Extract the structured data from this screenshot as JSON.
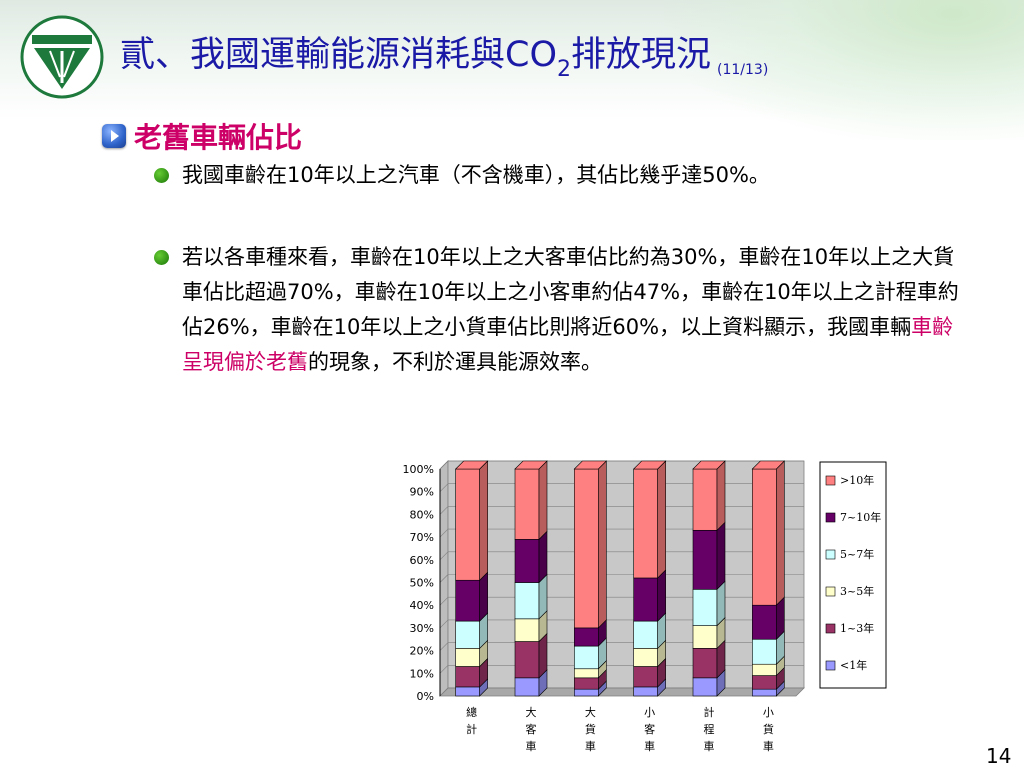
{
  "title": {
    "main": "貳、我國運輸能源消耗與CO",
    "sub": "2",
    "main_end": "排放現況",
    "page_tag": "(11/13)"
  },
  "section": {
    "heading": "老舊車輛佔比"
  },
  "bullets": [
    {
      "text": "我國車齡在10年以上之汽車（不含機車），其佔比幾乎達50%。"
    },
    {
      "text_pre": "若以各車種來看，車齡在10年以上之大客車佔比約為30%，車齡在10年以上之大貨車佔比超過70%，車齡在10年以上之小客車約佔47%，車齡在10年以上之計程車約佔26%，車齡在10年以上之小貨車佔比則將近60%，以上資料顯示，我國車輛",
      "text_highlight": "車齡呈現偏於老舊",
      "text_post": "的現象，不利於運具能源效率。"
    }
  ],
  "page_number": "14",
  "colors": {
    "title": "#1a1aa6",
    "accent": "#cc0066"
  },
  "chart_data": {
    "type": "bar",
    "stacked": true,
    "categories": [
      "總計",
      "大客車",
      "大貨車",
      "小客車",
      "計程車",
      "小貨車"
    ],
    "series": [
      {
        "name": "<1年",
        "color": "#9999ff",
        "values": [
          4,
          8,
          3,
          4,
          8,
          3
        ]
      },
      {
        "name": "1~3年",
        "color": "#993366",
        "values": [
          9,
          16,
          5,
          9,
          13,
          6
        ]
      },
      {
        "name": "3~5年",
        "color": "#ffffcc",
        "values": [
          8,
          10,
          4,
          8,
          10,
          5
        ]
      },
      {
        "name": "5~7年",
        "color": "#ccffff",
        "values": [
          12,
          16,
          10,
          12,
          16,
          11
        ]
      },
      {
        "name": "7~10年",
        "color": "#660066",
        "values": [
          18,
          19,
          8,
          19,
          26,
          15
        ]
      },
      {
        "name": ">10年",
        "color": "#ff8080",
        "values": [
          49,
          31,
          70,
          48,
          27,
          60
        ]
      }
    ],
    "y_ticks": [
      "0%",
      "10%",
      "20%",
      "30%",
      "40%",
      "50%",
      "60%",
      "70%",
      "80%",
      "90%",
      "100%"
    ],
    "ylim": [
      0,
      100
    ],
    "legend_position": "right"
  }
}
